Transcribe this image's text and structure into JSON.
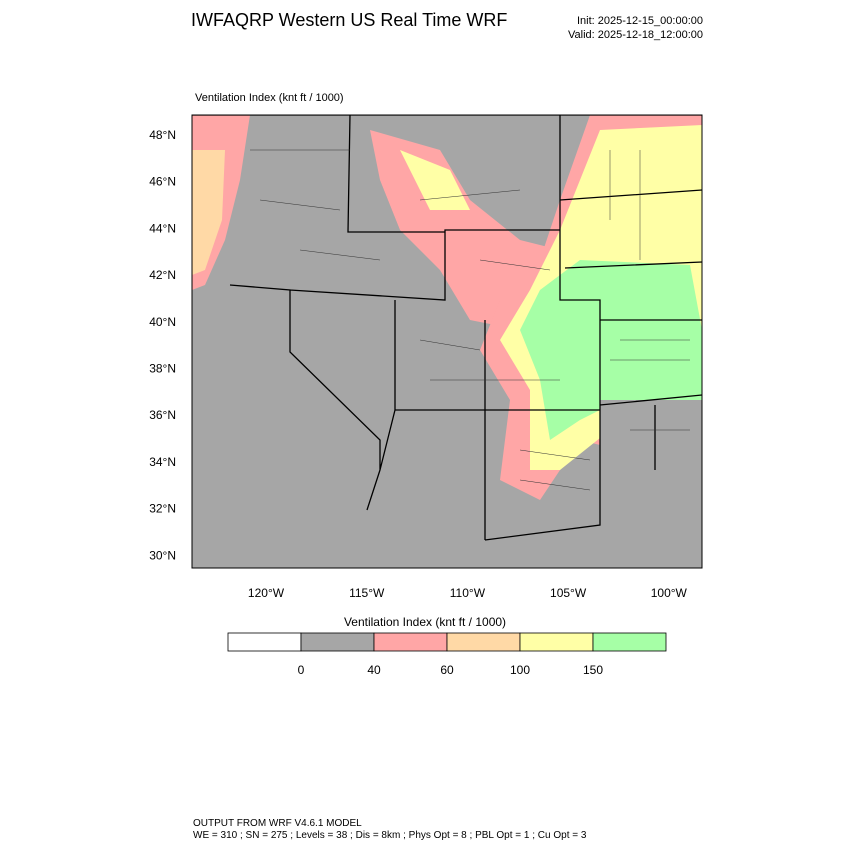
{
  "header": {
    "title": "IWFAQRP Western US Real Time WRF",
    "init": "Init: 2025-12-15_00:00:00",
    "valid": "Valid: 2025-12-18_12:00:00"
  },
  "map": {
    "label": "Ventilation Index   (knt ft / 1000)",
    "lat_labels": [
      "48°N",
      "46°N",
      "44°N",
      "42°N",
      "40°N",
      "38°N",
      "36°N",
      "34°N",
      "32°N",
      "30°N"
    ],
    "lon_labels": [
      "120°W",
      "115°W",
      "110°W",
      "105°W",
      "100°W"
    ]
  },
  "colorbar": {
    "title": "Ventilation Index   (knt ft / 1000)",
    "colors": [
      "#ffffff",
      "#a6a6a6",
      "#ffa6a6",
      "#ffd9a6",
      "#ffffa6",
      "#a6ffa6"
    ],
    "levels": [
      0,
      40,
      60,
      100,
      150
    ]
  },
  "footer": {
    "line1": "OUTPUT FROM WRF V4.6.1 MODEL",
    "line2": "WE = 310 ; SN = 275 ; Levels = 38 ; Dis = 8km ; Phys Opt = 8 ; PBL Opt = 1 ; Cu Opt = 3"
  }
}
